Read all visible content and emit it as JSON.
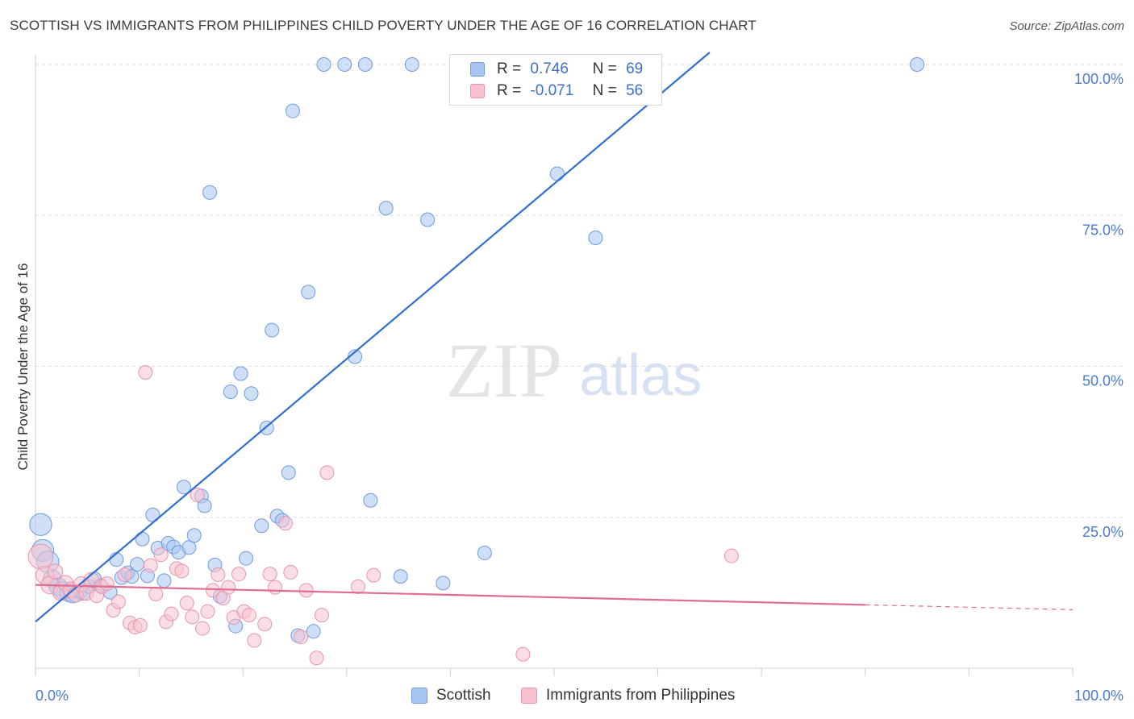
{
  "title": "SCOTTISH VS IMMIGRANTS FROM PHILIPPINES CHILD POVERTY UNDER THE AGE OF 16 CORRELATION CHART",
  "source": "Source: ZipAtlas.com",
  "watermark": {
    "zip": "ZIP",
    "atlas": "atlas"
  },
  "legend": {
    "r_label": "R =",
    "n_label": "N =",
    "rows": [
      {
        "r": "0.746",
        "n": "69",
        "color": "#a8c4f0",
        "border": "#6f9be0"
      },
      {
        "r": "-0.071",
        "n": "56",
        "color": "#f8c2d0",
        "border": "#e895ad"
      }
    ]
  },
  "bottom_legend": [
    {
      "label": "Scottish",
      "color": "#a8c4f0",
      "border": "#6f9be0"
    },
    {
      "label": "Immigrants from Philippines",
      "color": "#f8c2d0",
      "border": "#e895ad"
    }
  ],
  "chart_data": {
    "type": "scatter",
    "title": "SCOTTISH VS IMMIGRANTS FROM PHILIPPINES CHILD POVERTY UNDER THE AGE OF 16 CORRELATION CHART",
    "xlabel": "",
    "ylabel": "Child Poverty Under the Age of 16",
    "xlim": [
      0,
      100
    ],
    "ylim": [
      0,
      102
    ],
    "x_tick_labels": [
      "0.0%",
      "100.0%"
    ],
    "y_ticks": [
      25,
      50,
      75,
      100
    ],
    "y_tick_labels": [
      "25.0%",
      "50.0%",
      "75.0%",
      "100.0%"
    ],
    "grid": true,
    "series": [
      {
        "name": "Scottish",
        "color": "#a8c4f0",
        "stroke": "#6f9be0",
        "trend_color": "#2f6fd0",
        "trend": {
          "x1": 0,
          "y1": 7.7,
          "x2": 65,
          "y2": 102
        },
        "points": [
          [
            0.5,
            23.8,
            1.6
          ],
          [
            0.7,
            19.5,
            1.6
          ],
          [
            1.2,
            17.6,
            1.6
          ],
          [
            1.6,
            14.8,
            1.3
          ],
          [
            2.2,
            13.5,
            1.3
          ],
          [
            2.6,
            12.9,
            1.3
          ],
          [
            3.2,
            12.5,
            1.3
          ],
          [
            3.6,
            12.3,
            1.3
          ],
          [
            4.3,
            12.6,
            1.0
          ],
          [
            4.6,
            12.4,
            1.0
          ],
          [
            5.2,
            13.5,
            1.0
          ],
          [
            5.7,
            14.8,
            1.0
          ],
          [
            6.3,
            13.7,
            1.0
          ],
          [
            7.2,
            12.6,
            1.0
          ],
          [
            7.8,
            18.0,
            1.0
          ],
          [
            8.3,
            15.0,
            1.0
          ],
          [
            8.9,
            15.8,
            1.0
          ],
          [
            9.3,
            15.2,
            1.0
          ],
          [
            9.8,
            17.2,
            1.0
          ],
          [
            10.3,
            21.4,
            1.0
          ],
          [
            10.8,
            15.3,
            1.0
          ],
          [
            11.3,
            25.4,
            1.0
          ],
          [
            11.8,
            19.9,
            1.0
          ],
          [
            12.4,
            14.5,
            1.0
          ],
          [
            12.8,
            20.7,
            1.0
          ],
          [
            13.3,
            20.1,
            1.0
          ],
          [
            13.8,
            19.2,
            1.0
          ],
          [
            14.3,
            30.0,
            1.0
          ],
          [
            14.8,
            20.0,
            1.0
          ],
          [
            15.3,
            22.0,
            1.0
          ],
          [
            16.0,
            28.5,
            1.0
          ],
          [
            16.3,
            26.9,
            1.0
          ],
          [
            16.8,
            78.8,
            1.0
          ],
          [
            17.3,
            17.1,
            1.0
          ],
          [
            17.8,
            11.9,
            1.0
          ],
          [
            18.8,
            45.8,
            1.0
          ],
          [
            19.3,
            7.0,
            1.0
          ],
          [
            19.8,
            48.8,
            1.0
          ],
          [
            20.3,
            18.2,
            1.0
          ],
          [
            20.8,
            45.5,
            1.0
          ],
          [
            21.8,
            23.6,
            1.0
          ],
          [
            22.3,
            39.8,
            1.0
          ],
          [
            22.8,
            56.0,
            1.0
          ],
          [
            23.3,
            25.2,
            1.0
          ],
          [
            23.8,
            24.5,
            1.0
          ],
          [
            24.4,
            32.4,
            1.0
          ],
          [
            24.8,
            92.3,
            1.0
          ],
          [
            25.3,
            5.4,
            1.0
          ],
          [
            26.3,
            62.3,
            1.0
          ],
          [
            26.8,
            6.1,
            1.0
          ],
          [
            27.8,
            100.0,
            1.0
          ],
          [
            29.8,
            100.0,
            1.0
          ],
          [
            30.8,
            51.6,
            1.0
          ],
          [
            31.8,
            100.0,
            1.0
          ],
          [
            32.3,
            27.8,
            1.0
          ],
          [
            33.8,
            76.2,
            1.0
          ],
          [
            35.2,
            15.2,
            1.0
          ],
          [
            36.3,
            100.0,
            1.0
          ],
          [
            37.8,
            74.3,
            1.0
          ],
          [
            39.3,
            14.1,
            1.0
          ],
          [
            41.8,
            100.0,
            1.0
          ],
          [
            43.3,
            19.1,
            1.0
          ],
          [
            45.8,
            100.0,
            1.0
          ],
          [
            47.3,
            100.0,
            1.0
          ],
          [
            48.3,
            100.0,
            1.0
          ],
          [
            50.3,
            81.9,
            1.0
          ],
          [
            54.0,
            71.3,
            1.0
          ],
          [
            57.8,
            100.0,
            1.0
          ],
          [
            85.0,
            100.0,
            1.0
          ]
        ]
      },
      {
        "name": "Immigrants from Philippines",
        "color": "#f8c2d0",
        "stroke": "#e895ad",
        "trend_color": "#e06c92",
        "trend": {
          "x1": 0,
          "y1": 13.8,
          "x2": 80,
          "y2": 10.5
        },
        "trend_dash": {
          "x1": 80,
          "y1": 10.5,
          "x2": 100,
          "y2": 9.7
        },
        "points": [
          [
            0.5,
            18.5,
            1.8
          ],
          [
            0.9,
            15.4,
            1.3
          ],
          [
            1.4,
            13.8,
            1.3
          ],
          [
            1.9,
            16.0,
            1.1
          ],
          [
            2.4,
            12.5,
            1.1
          ],
          [
            2.9,
            14.1,
            1.1
          ],
          [
            3.4,
            13.0,
            1.1
          ],
          [
            3.9,
            12.2,
            1.1
          ],
          [
            4.4,
            13.9,
            1.1
          ],
          [
            4.9,
            12.5,
            1.1
          ],
          [
            5.4,
            14.6,
            1.1
          ],
          [
            5.9,
            12.0,
            1.0
          ],
          [
            6.4,
            13.5,
            1.0
          ],
          [
            6.9,
            14.0,
            1.0
          ],
          [
            7.5,
            9.6,
            1.0
          ],
          [
            8.0,
            11.0,
            1.0
          ],
          [
            8.6,
            15.5,
            1.0
          ],
          [
            9.1,
            7.5,
            1.0
          ],
          [
            9.6,
            6.8,
            1.0
          ],
          [
            10.1,
            7.1,
            1.0
          ],
          [
            10.6,
            49.0,
            1.0
          ],
          [
            11.1,
            17.0,
            1.0
          ],
          [
            11.6,
            12.3,
            1.0
          ],
          [
            12.1,
            18.8,
            1.0
          ],
          [
            12.6,
            7.7,
            1.0
          ],
          [
            13.1,
            9.0,
            1.0
          ],
          [
            13.6,
            16.5,
            1.0
          ],
          [
            14.1,
            16.1,
            1.0
          ],
          [
            14.6,
            10.8,
            1.0
          ],
          [
            15.1,
            8.5,
            1.0
          ],
          [
            15.6,
            28.7,
            1.0
          ],
          [
            16.1,
            6.6,
            1.0
          ],
          [
            16.6,
            9.4,
            1.0
          ],
          [
            17.1,
            12.9,
            1.0
          ],
          [
            17.6,
            15.5,
            1.0
          ],
          [
            18.1,
            11.6,
            1.0
          ],
          [
            18.6,
            13.4,
            1.0
          ],
          [
            19.1,
            8.4,
            1.0
          ],
          [
            19.6,
            15.6,
            1.0
          ],
          [
            20.1,
            9.4,
            1.0
          ],
          [
            20.6,
            8.8,
            1.0
          ],
          [
            21.1,
            4.6,
            1.0
          ],
          [
            22.1,
            7.3,
            1.0
          ],
          [
            22.6,
            15.6,
            1.0
          ],
          [
            23.1,
            13.4,
            1.0
          ],
          [
            24.1,
            24.0,
            1.0
          ],
          [
            24.6,
            15.9,
            1.0
          ],
          [
            25.6,
            5.2,
            1.0
          ],
          [
            26.1,
            12.9,
            1.0
          ],
          [
            27.1,
            1.7,
            1.0
          ],
          [
            27.6,
            8.8,
            1.0
          ],
          [
            28.1,
            32.4,
            1.0
          ],
          [
            31.1,
            13.5,
            1.0
          ],
          [
            32.6,
            15.4,
            1.0
          ],
          [
            47.0,
            2.3,
            1.0
          ],
          [
            67.1,
            18.6,
            1.0
          ]
        ]
      }
    ]
  }
}
